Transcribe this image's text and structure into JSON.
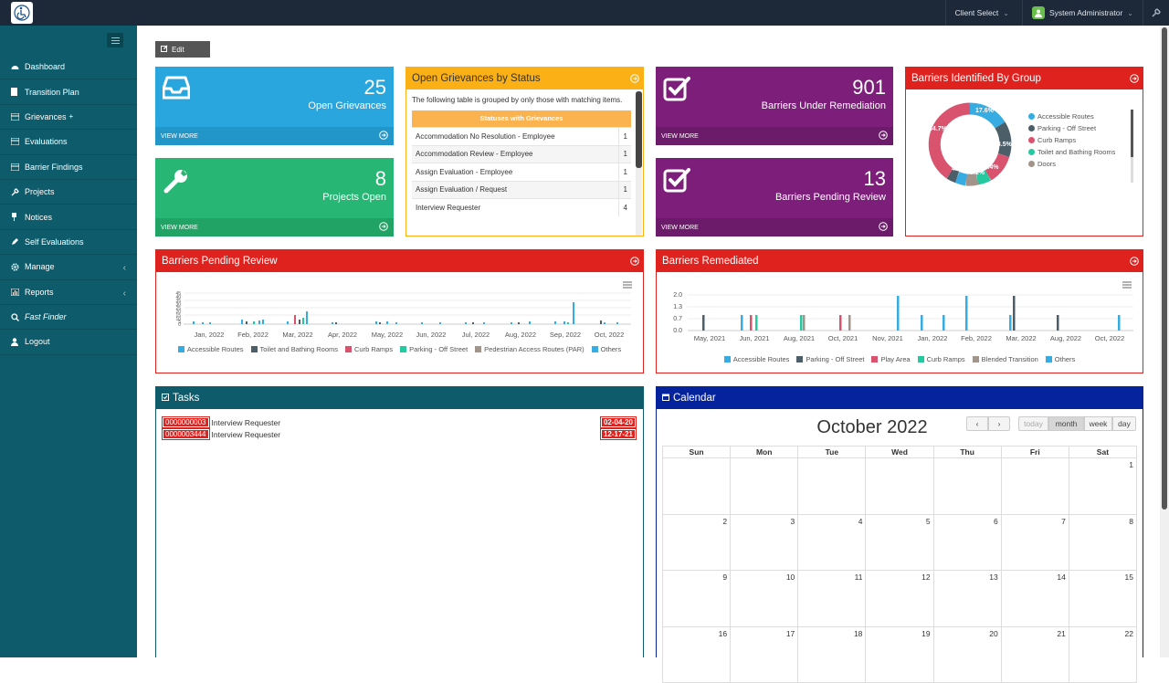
{
  "topbar": {
    "client_select": "Client Select",
    "user_name": "System Administrator"
  },
  "sidebar": {
    "items": [
      {
        "label": "Dashboard"
      },
      {
        "label": "Transition Plan"
      },
      {
        "label": "Grievances"
      },
      {
        "label": "Evaluations"
      },
      {
        "label": "Barrier Findings"
      },
      {
        "label": "Projects"
      },
      {
        "label": "Notices"
      },
      {
        "label": "Self Evaluations"
      },
      {
        "label": "Manage"
      },
      {
        "label": "Reports"
      },
      {
        "label": "Fast Finder"
      },
      {
        "label": "Logout"
      }
    ]
  },
  "toolbar": {
    "edit_label": "Edit"
  },
  "tiles": {
    "open_grievances": {
      "value": "25",
      "label": "Open Grievances",
      "footer": "VIEW MORE",
      "color": "#2aa6de"
    },
    "projects_open": {
      "value": "8",
      "label": "Projects Open",
      "footer": "VIEW MORE",
      "color": "#27b673"
    },
    "barriers_remediation": {
      "value": "901",
      "label": "Barriers Under Remediation",
      "footer": "VIEW MORE",
      "color": "#7e1e7b"
    },
    "barriers_pending": {
      "value": "13",
      "label": "Barriers Pending Review",
      "footer": "VIEW MORE",
      "color": "#7e1e7b"
    }
  },
  "grievance_status": {
    "title": "Open Grievances by Status",
    "intro": "The following table is grouped by only those with matching items.",
    "table_header": "Statuses with Grievances",
    "rows": [
      {
        "status": "Accommodation No Resolution - Employee",
        "count": "1"
      },
      {
        "status": "Accommodation Review - Employee",
        "count": "1"
      },
      {
        "status": "Assign Evaluation - Employee",
        "count": "1"
      },
      {
        "status": "Assign Evaluation / Request",
        "count": "1"
      },
      {
        "status": "Interview Requester",
        "count": "4"
      }
    ]
  },
  "barriers_by_group": {
    "title": "Barriers Identified By Group",
    "legend": [
      "Accessible Routes",
      "Parking - Off Street",
      "Curb Ramps",
      "Toilet and Bathing Rooms",
      "Doors"
    ],
    "slice_labels": [
      "17.6%",
      "13.5%",
      "11.4%",
      "5.1%",
      "5.1%",
      "4.3%",
      "4.2%",
      "34.7%"
    ]
  },
  "pending_review_chart": {
    "title": "Barriers Pending Review",
    "y_ticks": [
      "45",
      "40",
      "35",
      "30",
      "25",
      "20",
      "15",
      "10",
      "5",
      "0"
    ],
    "x_labels": [
      "Jan, 2022",
      "Feb, 2022",
      "Mar, 2022",
      "Apr, 2022",
      "May, 2022",
      "Jun, 2022",
      "Jul, 2022",
      "Aug, 2022",
      "Sep, 2022",
      "Oct, 2022"
    ],
    "legend": [
      "Accessible Routes",
      "Toilet and Bathing Rooms",
      "Curb Ramps",
      "Parking - Off Street",
      "Pedestrian Access Routes (PAR)",
      "Others"
    ]
  },
  "remediated_chart": {
    "title": "Barriers Remediated",
    "y_ticks": [
      "2.0",
      "1.3",
      "0.7",
      "0.0"
    ],
    "x_labels": [
      "May, 2021",
      "Jun, 2021",
      "Aug, 2021",
      "Oct, 2021",
      "Nov, 2021",
      "Jan, 2022",
      "Feb, 2022",
      "Mar, 2022",
      "Aug, 2022",
      "Oct, 2022"
    ],
    "legend": [
      "Accessible Routes",
      "Parking - Off Street",
      "Play Area",
      "Curb Ramps",
      "Blended Transition",
      "Others"
    ]
  },
  "tasks": {
    "title": "Tasks",
    "items": [
      {
        "id": "0000000003",
        "name": "Interview Requester",
        "date": "02-04-20"
      },
      {
        "id": "0000003444",
        "name": "Interview Requester",
        "date": "12-17-21"
      }
    ]
  },
  "calendar": {
    "title": "Calendar",
    "month_title": "October 2022",
    "views": [
      "today",
      "month",
      "week",
      "day"
    ],
    "dow": [
      "Sun",
      "Mon",
      "Tue",
      "Wed",
      "Thu",
      "Fri",
      "Sat"
    ],
    "weeks": [
      [
        "",
        "",
        "",
        "",
        "",
        "",
        "1"
      ],
      [
        "2",
        "3",
        "4",
        "5",
        "6",
        "7",
        "8"
      ],
      [
        "9",
        "10",
        "11",
        "12",
        "13",
        "14",
        "15"
      ],
      [
        "16",
        "17",
        "18",
        "19",
        "20",
        "21",
        "22"
      ]
    ]
  },
  "colors": {
    "accent_red": "#e0221f",
    "accent_orange": "#fbb016",
    "teal_sidebar": "#0e5c6b",
    "navy": "#05239c"
  }
}
